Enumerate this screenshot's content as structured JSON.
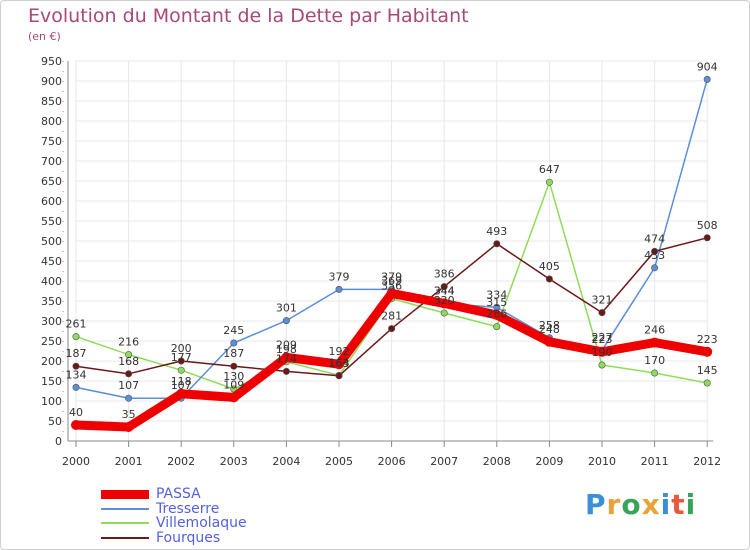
{
  "header": {
    "title": "Evolution du Montant de la Dette par Habitant",
    "subtitle": "(en €)"
  },
  "logo": {
    "text": "Proxiti"
  },
  "colors": {
    "PASSA": "#ee0000",
    "Tresserre": "#5b8ed6",
    "Villemolaque": "#8fdc5a",
    "Fourques": "#6a1818",
    "title": "#a8497a",
    "legend_text": "#5560e0",
    "axis_text": "#333333",
    "grid": "#e8e8e8"
  },
  "chart_data": {
    "type": "line",
    "title": "Evolution du Montant de la Dette par Habitant",
    "subtitle": "(en €)",
    "xlabel": "",
    "ylabel": "",
    "ylim": [
      0,
      950
    ],
    "y_ticks": [
      0,
      50,
      100,
      150,
      200,
      250,
      300,
      350,
      400,
      450,
      500,
      550,
      600,
      650,
      700,
      750,
      800,
      850,
      900,
      950
    ],
    "categories": [
      "2000",
      "2001",
      "2002",
      "2003",
      "2004",
      "2005",
      "2006",
      "2007",
      "2008",
      "2009",
      "2010",
      "2011",
      "2012"
    ],
    "grid": true,
    "legend_position": "bottom-left",
    "series": [
      {
        "name": "PASSA",
        "values": [
          40,
          35,
          118,
          109,
          209,
          192,
          369,
          344,
          315,
          248,
          223,
          246,
          223
        ]
      },
      {
        "name": "Tresserre",
        "values": [
          134,
          107,
          107,
          245,
          301,
          379,
          379,
          344,
          334,
          258,
          227,
          433,
          904
        ]
      },
      {
        "name": "Villemolaque",
        "values": [
          261,
          216,
          177,
          130,
          198,
          164,
          356,
          320,
          286,
          647,
          190,
          170,
          145
        ]
      },
      {
        "name": "Fourques",
        "values": [
          187,
          168,
          200,
          187,
          174,
          163,
          281,
          386,
          493,
          405,
          321,
          474,
          508
        ]
      }
    ]
  }
}
